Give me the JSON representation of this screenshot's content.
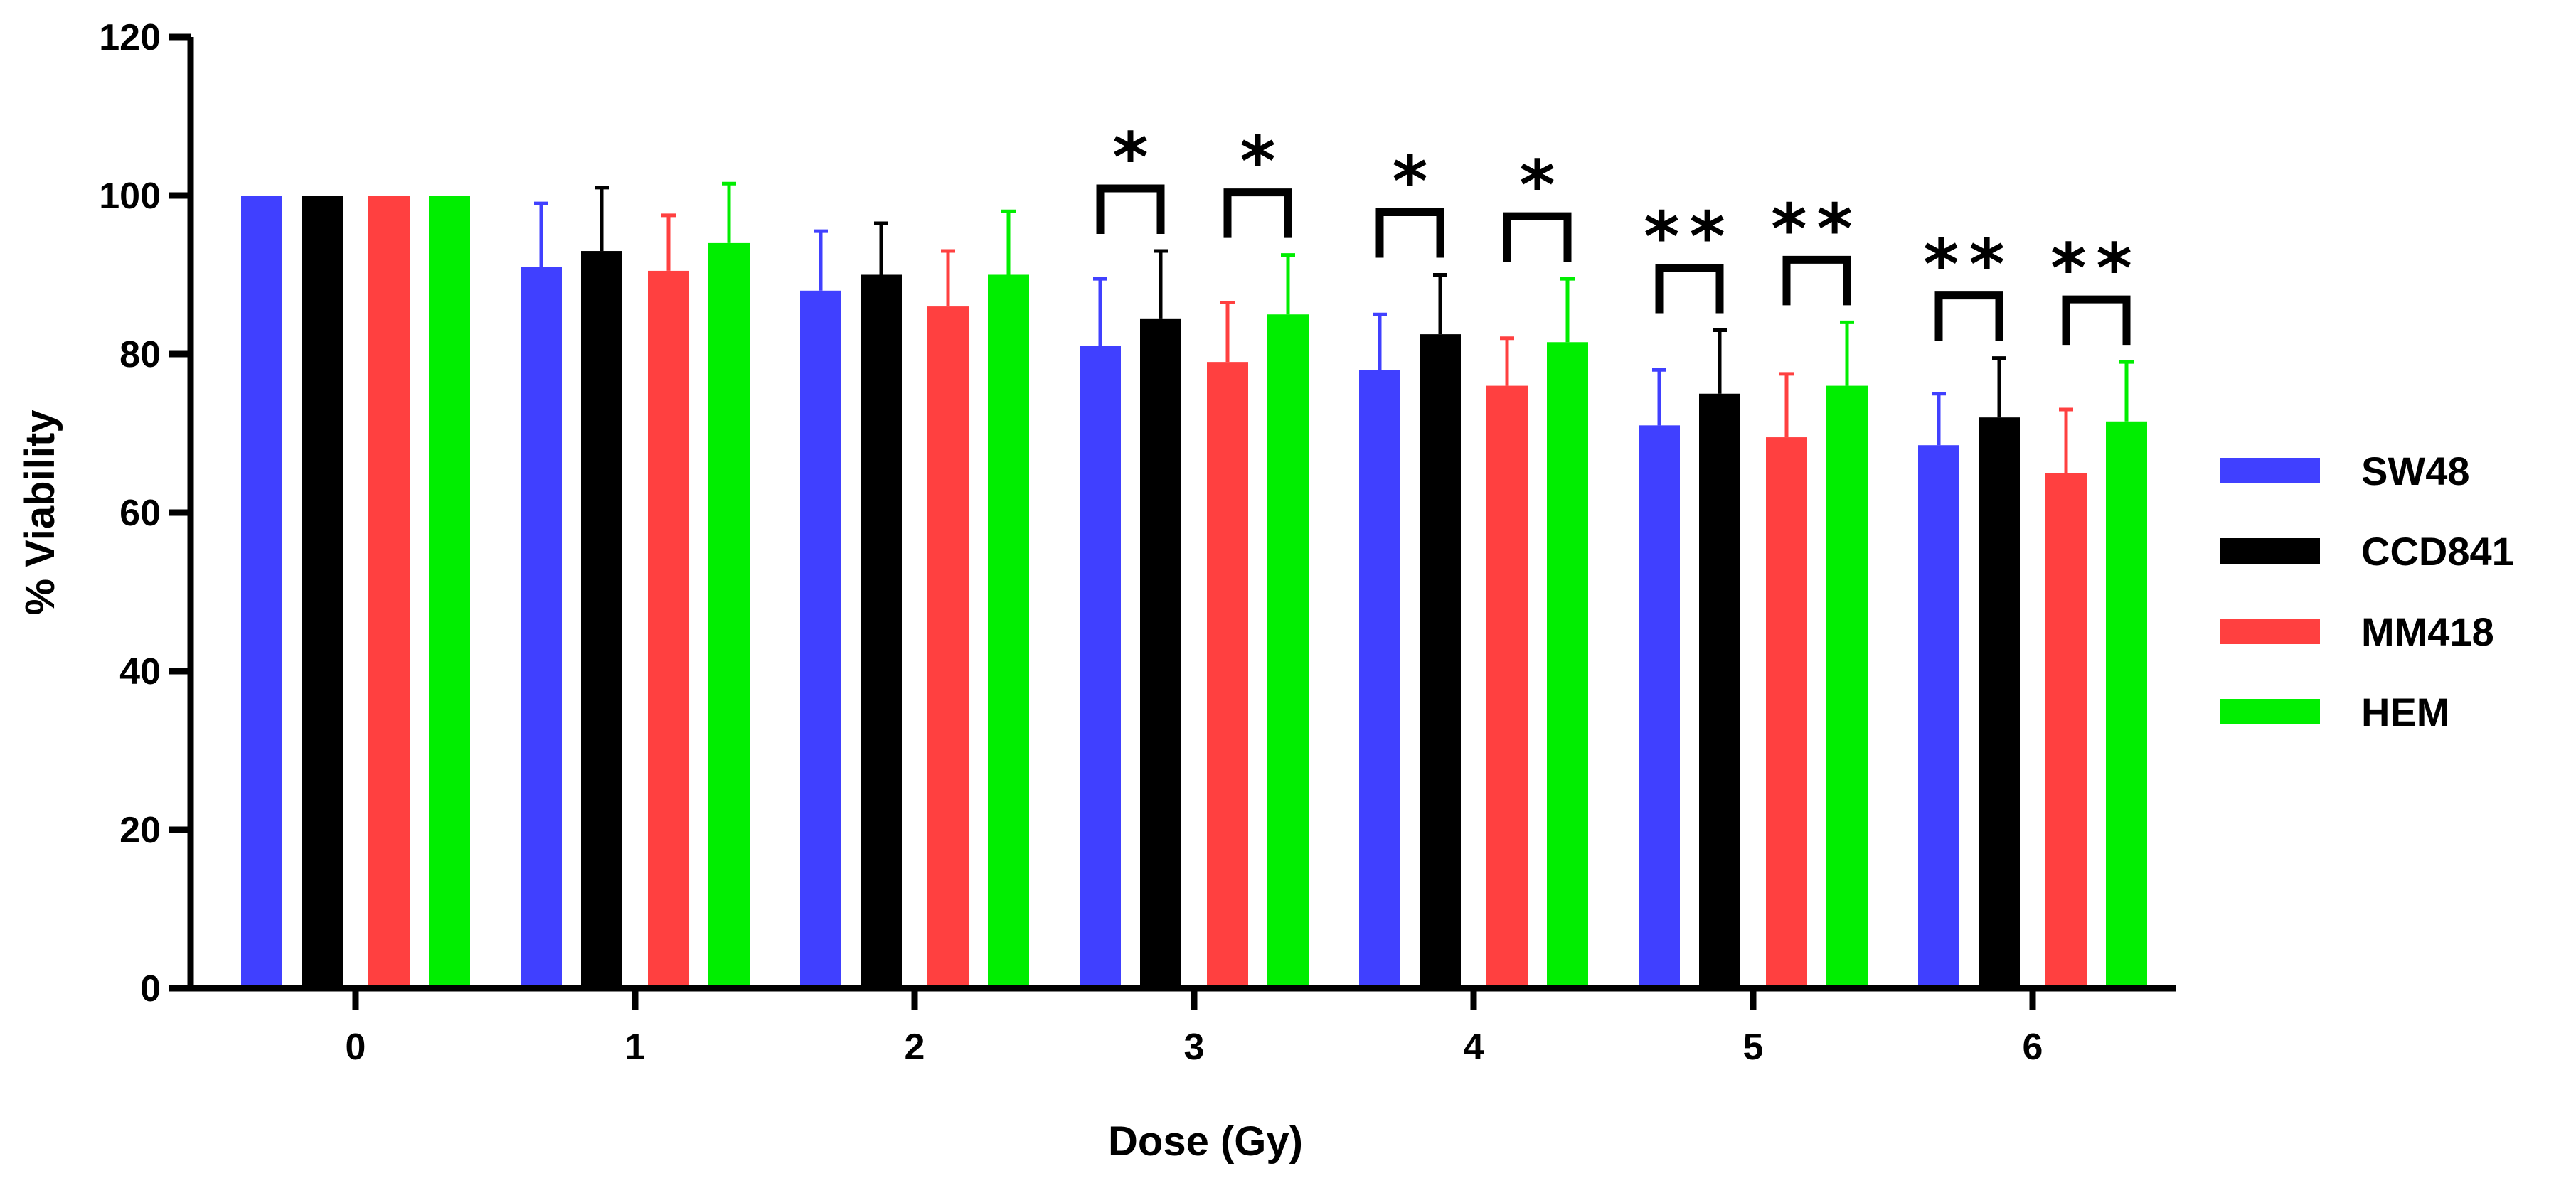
{
  "chart_data": {
    "type": "bar",
    "title": "",
    "xlabel": "Dose (Gy)",
    "ylabel": "% Viability",
    "ylim": [
      0,
      120
    ],
    "yticks": [
      "0",
      "20",
      "40",
      "60",
      "80",
      "100",
      "120"
    ],
    "categories": [
      "0",
      "1",
      "2",
      "3",
      "4",
      "5",
      "6"
    ],
    "series": [
      {
        "name": "SW48",
        "color": "#4040ff",
        "values": [
          100,
          91,
          88,
          81,
          78,
          71,
          68.5
        ],
        "errors": [
          0,
          8,
          7.5,
          8.5,
          7,
          7,
          6.5
        ]
      },
      {
        "name": "CCD841",
        "color": "#000000",
        "values": [
          100,
          93,
          90,
          84.5,
          82.5,
          75,
          72
        ],
        "errors": [
          0,
          8,
          6.5,
          8.5,
          7.5,
          8,
          7.5
        ]
      },
      {
        "name": "MM418",
        "color": "#ff4040",
        "values": [
          100,
          90.5,
          86,
          79,
          76,
          69.5,
          65
        ],
        "errors": [
          0,
          7,
          7,
          7.5,
          6,
          8,
          8
        ]
      },
      {
        "name": "HEM",
        "color": "#00ee00",
        "values": [
          100,
          94,
          90,
          85,
          81.5,
          76,
          71.5
        ],
        "errors": [
          0,
          7.5,
          8,
          7.5,
          8,
          8,
          7.5
        ]
      }
    ],
    "annotations": [
      {
        "category": "3",
        "pair": "SW48-CCD841",
        "label": "*"
      },
      {
        "category": "3",
        "pair": "MM418-HEM",
        "label": "*"
      },
      {
        "category": "4",
        "pair": "SW48-CCD841",
        "label": "*"
      },
      {
        "category": "4",
        "pair": "MM418-HEM",
        "label": "*"
      },
      {
        "category": "5",
        "pair": "SW48-CCD841",
        "label": "**"
      },
      {
        "category": "5",
        "pair": "MM418-HEM",
        "label": "**"
      },
      {
        "category": "6",
        "pair": "SW48-CCD841",
        "label": "**"
      },
      {
        "category": "6",
        "pair": "MM418-HEM",
        "label": "**"
      }
    ],
    "legend_position": "right"
  }
}
